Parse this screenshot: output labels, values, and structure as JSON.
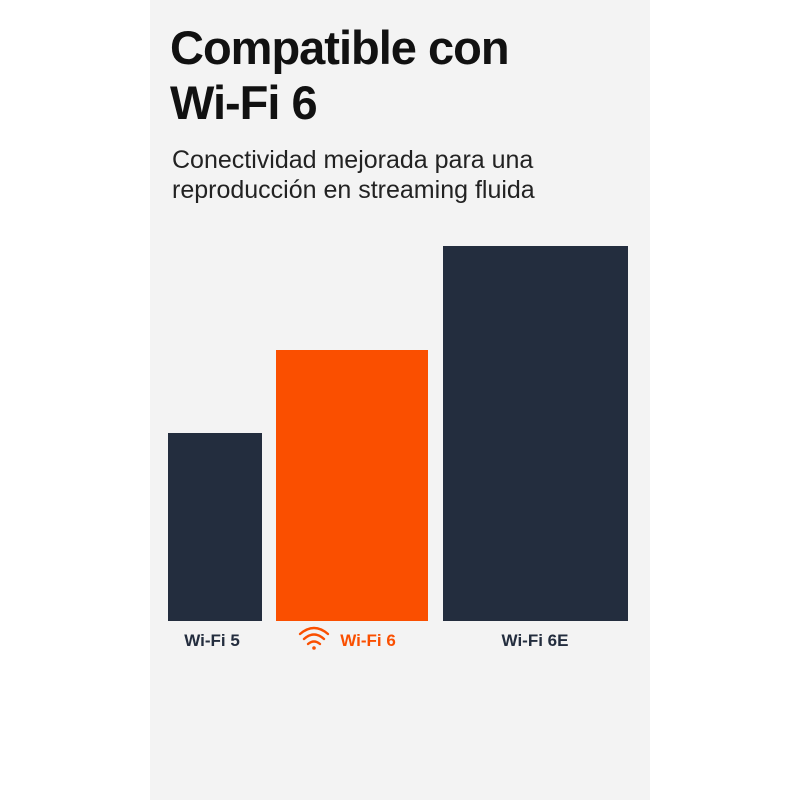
{
  "chart_data": {
    "type": "bar",
    "title": [
      "Compatible con",
      "Wi-Fi 6"
    ],
    "subtitle": [
      "Conectividad mejorada para una",
      "reproducción en streaming fluida"
    ],
    "categories": [
      "Wi-Fi 5",
      "Wi-Fi 6",
      "Wi-Fi 6E"
    ],
    "values": [
      188,
      271,
      375
    ],
    "colors": [
      "#232d3e",
      "#fa4f00",
      "#232d3e"
    ],
    "ylim": [
      0,
      375
    ]
  }
}
